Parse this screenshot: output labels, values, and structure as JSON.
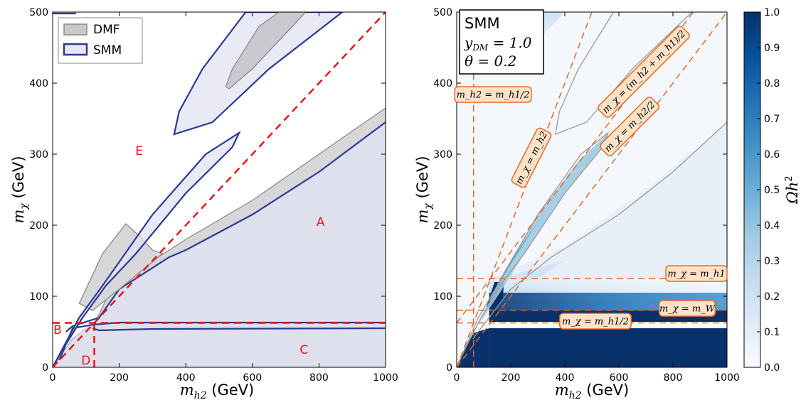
{
  "chart_data": [
    {
      "type": "area",
      "xlabel": "m_h2 (GeV)",
      "ylabel": "m_χ (GeV)",
      "xlim": [
        0,
        1000
      ],
      "ylim": [
        0,
        500
      ],
      "xticks": [
        "0",
        "200",
        "400",
        "600",
        "800",
        "1000"
      ],
      "yticks": [
        "0",
        "100",
        "200",
        "300",
        "400",
        "500"
      ],
      "grid": false,
      "legend": {
        "placement": "top-left",
        "entries": [
          "DMF",
          "SMM"
        ]
      },
      "series": [
        {
          "name": "DMF",
          "color": "#b9b9c0"
        },
        {
          "name": "SMM",
          "color": "#2b3a92"
        }
      ],
      "region_labels": [
        {
          "text": "A",
          "x": 805,
          "y": 205
        },
        {
          "text": "B",
          "x": 15,
          "y": 53
        },
        {
          "text": "C",
          "x": 755,
          "y": 25
        },
        {
          "text": "D",
          "x": 100,
          "y": 10
        },
        {
          "text": "E",
          "x": 260,
          "y": 305
        }
      ],
      "reference_lines": [
        {
          "desc": "diagonal",
          "x": [
            0,
            1000
          ],
          "y": [
            0,
            500
          ],
          "style": "dashed",
          "color": "#e8141a"
        },
        {
          "desc": "horizontal",
          "y": 62.5,
          "style": "dashed",
          "color": "#e8141a"
        },
        {
          "desc": "vertical",
          "x": 125,
          "style": "dashed",
          "color": "#e8141a"
        }
      ]
    },
    {
      "type": "heatmap",
      "xlabel": "m_h2 (GeV)",
      "ylabel": "m_χ (GeV)",
      "colorbar_label": "Ωh²",
      "xlim": [
        0,
        1000
      ],
      "ylim": [
        0,
        500
      ],
      "xticks": [
        "0",
        "200",
        "400",
        "600",
        "800",
        "1000"
      ],
      "yticks": [
        "0",
        "100",
        "200",
        "300",
        "400",
        "500"
      ],
      "colorbar_ticks": [
        "0.0",
        "0.1",
        "0.2",
        "0.3",
        "0.4",
        "0.5",
        "0.6",
        "0.7",
        "0.8",
        "0.9",
        "1.0"
      ],
      "colorbar_range": [
        0.0,
        1.0
      ],
      "infobox": {
        "title": "SMM",
        "line1": "y_DM = 1.0",
        "line2": "θ = 0.2"
      },
      "annotations": [
        {
          "text": "m_h2 = m_h1/2",
          "x_line": 62.5
        },
        {
          "text": "m_χ = m_h2"
        },
        {
          "text": "m_χ = (m_h2 + m_h1)/2"
        },
        {
          "text": "m_χ = m_h2/2"
        },
        {
          "text": "m_χ = m_h1",
          "y_line": 125
        },
        {
          "text": "m_χ = m_W",
          "y_line": 80.4
        },
        {
          "text": "m_χ = m_h1/2",
          "y_line": 62.5
        }
      ],
      "colors": {
        "dark": "#08306b",
        "light": "#f7fbff",
        "line": "#e3692a"
      }
    }
  ]
}
